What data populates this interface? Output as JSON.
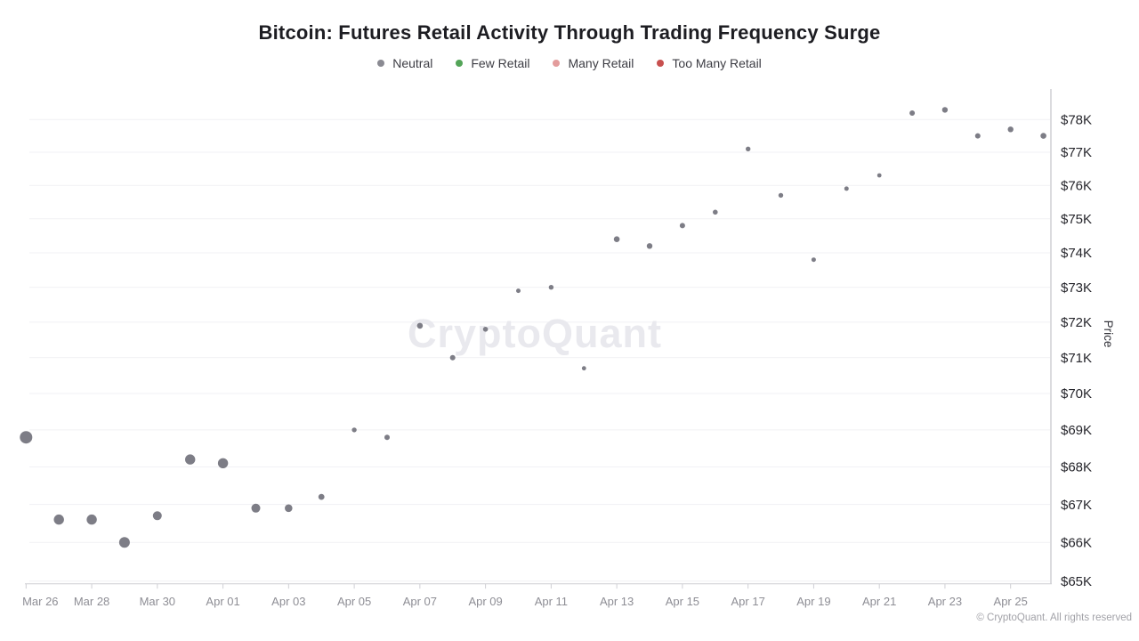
{
  "header": {
    "title": "Bitcoin: Futures Retail Activity Through Trading Frequency Surge"
  },
  "legend": {
    "items": [
      {
        "label": "Neutral",
        "color": "#8a8a92"
      },
      {
        "label": "Few Retail",
        "color": "#53a458"
      },
      {
        "label": "Many Retail",
        "color": "#e39c9c"
      },
      {
        "label": "Too Many Retail",
        "color": "#c8504f"
      }
    ]
  },
  "watermark": {
    "text": "CryptoQuant"
  },
  "footer": {
    "copyright": "© CryptoQuant. All rights reserved"
  },
  "chart_data": {
    "type": "scatter",
    "title": "Bitcoin: Futures Retail Activity Through Trading Frequency Surge",
    "xlabel": "",
    "ylabel": "Price",
    "y_scale": "log",
    "ylim_k": [
      64.9,
      79.0
    ],
    "grid": true,
    "legend_position": "top",
    "y_ticks": [
      65,
      66,
      67,
      68,
      69,
      70,
      71,
      72,
      73,
      74,
      75,
      76,
      77,
      78
    ],
    "y_tick_labels": [
      "$65K",
      "$66K",
      "$67K",
      "$68K",
      "$69K",
      "$70K",
      "$71K",
      "$72K",
      "$73K",
      "$74K",
      "$75K",
      "$76K",
      "$77K",
      "$78K"
    ],
    "x_tick_labels": [
      "Mar 26",
      "Mar 28",
      "Mar 30",
      "Apr 01",
      "Apr 03",
      "Apr 05",
      "Apr 07",
      "Apr 09",
      "Apr 11",
      "Apr 13",
      "Apr 15",
      "Apr 17",
      "Apr 19",
      "Apr 21",
      "Apr 23",
      "Apr 25"
    ],
    "x_range": [
      "Mar 26",
      "Apr 26"
    ],
    "series": [
      {
        "name": "Neutral",
        "color": "#7d7d86",
        "points": [
          {
            "date": "Mar 26",
            "price_k": 68.8,
            "size": 7.0
          },
          {
            "date": "Mar 27",
            "price_k": 66.6,
            "size": 5.7
          },
          {
            "date": "Mar 28",
            "price_k": 66.6,
            "size": 5.7
          },
          {
            "date": "Mar 29",
            "price_k": 66.0,
            "size": 6.0
          },
          {
            "date": "Mar 30",
            "price_k": 66.7,
            "size": 5.0
          },
          {
            "date": "Mar 31",
            "price_k": 68.2,
            "size": 5.7
          },
          {
            "date": "Apr 01",
            "price_k": 68.1,
            "size": 5.7
          },
          {
            "date": "Apr 02",
            "price_k": 66.9,
            "size": 5.0
          },
          {
            "date": "Apr 03",
            "price_k": 66.9,
            "size": 4.3
          },
          {
            "date": "Apr 04",
            "price_k": 67.2,
            "size": 3.4
          },
          {
            "date": "Apr 05",
            "price_k": 69.0,
            "size": 2.7
          },
          {
            "date": "Apr 06",
            "price_k": 68.8,
            "size": 3.0
          },
          {
            "date": "Apr 07",
            "price_k": 71.9,
            "size": 3.3
          },
          {
            "date": "Apr 08",
            "price_k": 71.0,
            "size": 3.0
          },
          {
            "date": "Apr 09",
            "price_k": 71.8,
            "size": 2.8
          },
          {
            "date": "Apr 10",
            "price_k": 72.9,
            "size": 2.5
          },
          {
            "date": "Apr 11",
            "price_k": 73.0,
            "size": 2.7
          },
          {
            "date": "Apr 12",
            "price_k": 70.7,
            "size": 2.4
          },
          {
            "date": "Apr 13",
            "price_k": 74.4,
            "size": 3.3
          },
          {
            "date": "Apr 14",
            "price_k": 74.2,
            "size": 3.2
          },
          {
            "date": "Apr 15",
            "price_k": 74.8,
            "size": 3.0
          },
          {
            "date": "Apr 16",
            "price_k": 75.2,
            "size": 2.8
          },
          {
            "date": "Apr 17",
            "price_k": 77.1,
            "size": 2.7
          },
          {
            "date": "Apr 18",
            "price_k": 75.7,
            "size": 2.7
          },
          {
            "date": "Apr 19",
            "price_k": 73.8,
            "size": 2.5
          },
          {
            "date": "Apr 20",
            "price_k": 75.9,
            "size": 2.5
          },
          {
            "date": "Apr 21",
            "price_k": 76.3,
            "size": 2.4
          },
          {
            "date": "Apr 22",
            "price_k": 78.2,
            "size": 3.0
          },
          {
            "date": "Apr 23",
            "price_k": 78.3,
            "size": 3.2
          },
          {
            "date": "Apr 24",
            "price_k": 77.5,
            "size": 3.0
          },
          {
            "date": "Apr 25",
            "price_k": 77.7,
            "size": 3.2
          },
          {
            "date": "Apr 26",
            "price_k": 77.5,
            "size": 3.3
          }
        ]
      }
    ]
  }
}
